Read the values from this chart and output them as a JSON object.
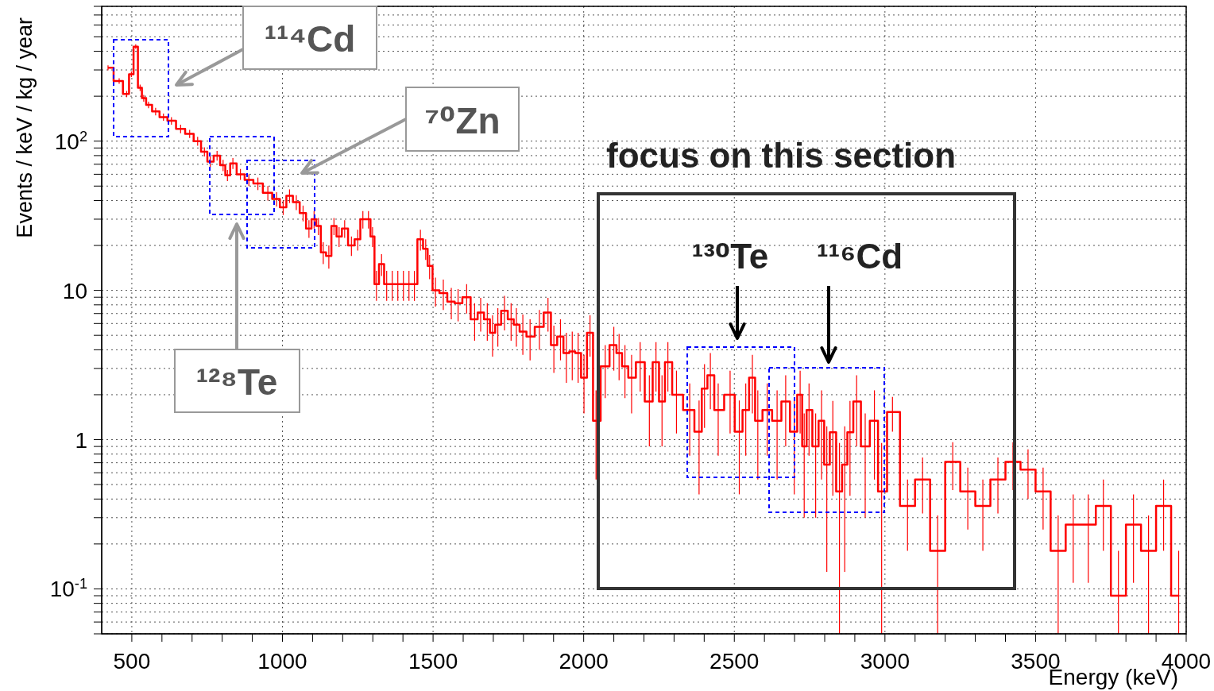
{
  "chart_data": {
    "type": "step",
    "color": "#ff0000",
    "xlabel": "Energy (keV)",
    "ylabel": "Events / keV / kg / year",
    "x": [
      421,
      458,
      483,
      498.5,
      513,
      527.5,
      539.5,
      555.5,
      579,
      605,
      631.5,
      662,
      692,
      718.5,
      741,
      760.5,
      783,
      803,
      817.5,
      835.5,
      860.5,
      888.5,
      918.5,
      951.5,
      980.5,
      1002.5,
      1023.5,
      1046,
      1068.5,
      1088,
      1105,
      1119.5,
      1135.5,
      1154,
      1171,
      1188,
      1206.5,
      1229,
      1250,
      1267,
      1285.5,
      1299,
      1312,
      1329,
      1346,
      1364.5,
      1383,
      1401.5,
      1420,
      1438,
      1458,
      1475.5,
      1488.5,
      1508,
      1534,
      1560.5,
      1583,
      1611.5,
      1638,
      1658,
      1680,
      1697.5,
      1715,
      1737,
      1759,
      1776.5,
      1798,
      1822,
      1853,
      1881.5,
      1901,
      1923,
      1942.5,
      1962,
      1981.5,
      2001,
      2021,
      2041,
      2071.5,
      2100,
      2117.5,
      2137,
      2159,
      2187.5,
      2218,
      2240,
      2260,
      2279.5,
      2308,
      2352,
      2383,
      2401,
      2420.5,
      2446.5,
      2486,
      2516.5,
      2538,
      2560,
      2578,
      2609,
      2642,
      2670.5,
      2699,
      2718.5,
      2732,
      2748,
      2770,
      2789.5,
      2807,
      2827,
      2849,
      2866.5,
      2884,
      2906,
      2934.5,
      2965,
      2989,
      3025,
      3075,
      3125,
      3175,
      3225,
      3275,
      3325,
      3375,
      3425,
      3475,
      3525,
      3575,
      3625,
      3675,
      3725,
      3775,
      3825,
      3875,
      3925,
      3975
    ],
    "values": [
      310,
      253,
      207,
      281,
      430,
      228,
      194,
      175,
      158,
      145,
      137,
      121,
      112,
      100,
      85,
      73,
      80,
      69,
      59,
      71,
      60,
      55,
      52,
      45,
      41,
      36,
      43,
      39,
      33,
      26,
      30,
      27,
      18,
      17,
      27,
      23,
      26,
      20,
      22,
      30,
      30,
      23,
      11,
      15,
      11,
      11,
      11,
      11,
      11,
      11,
      22,
      19,
      14.6,
      10,
      9.6,
      8.4,
      8.2,
      9.0,
      6.4,
      7.1,
      6.4,
      5.2,
      5.9,
      7.3,
      6.4,
      5.9,
      5.3,
      4.9,
      5.7,
      7.1,
      4.3,
      4.9,
      3.8,
      3.9,
      3.8,
      2.6,
      5.2,
      1.34,
      3.1,
      4.3,
      3.8,
      3.1,
      2.6,
      3.3,
      1.8,
      3.3,
      1.8,
      3.3,
      2.0,
      1.58,
      1.13,
      2.2,
      2.7,
      1.58,
      2.0,
      1.13,
      1.58,
      2.6,
      1.34,
      1.58,
      1.34,
      1.8,
      1.13,
      2.0,
      0.9,
      1.58,
      0.9,
      1.34,
      0.68,
      1.12,
      0.45,
      0.68,
      1.12,
      1.8,
      0.9,
      1.34,
      0.45,
      1.53,
      0.36,
      0.54,
      0.18,
      0.71,
      0.45,
      0.36,
      0.54,
      0.71,
      0.63,
      0.45,
      0.18,
      0.27,
      0.27,
      0.36,
      0.09,
      0.27,
      0.18,
      0.36,
      0.09
    ],
    "errors": [
      12,
      11,
      10,
      12,
      15,
      11,
      10,
      9,
      9,
      8,
      8,
      8,
      7,
      7,
      6,
      6,
      6,
      6,
      5,
      6,
      5,
      5,
      5,
      5,
      4.5,
      4,
      4.5,
      4.5,
      4,
      3.5,
      4,
      3.5,
      3,
      3,
      3.5,
      3.5,
      3.5,
      3,
      3.5,
      4,
      4,
      3.5,
      2.5,
      2.5,
      2.5,
      2.5,
      2.5,
      2.5,
      2.5,
      2.5,
      3.5,
      3,
      2.7,
      2.2,
      2.2,
      2,
      2,
      2,
      1.8,
      1.8,
      1.8,
      1.6,
      1.7,
      1.9,
      1.8,
      1.7,
      1.6,
      1.5,
      1.7,
      1.8,
      1.5,
      1.5,
      1.4,
      1.4,
      1.4,
      1.1,
      1.6,
      0.8,
      1.2,
      1.4,
      1.3,
      1.2,
      1.1,
      1.2,
      0.9,
      1.2,
      0.9,
      1.2,
      0.9,
      0.8,
      0.7,
      1.0,
      1.1,
      0.8,
      0.9,
      0.7,
      0.8,
      1.1,
      0.8,
      0.8,
      0.8,
      0.9,
      0.7,
      0.9,
      0.6,
      0.8,
      0.6,
      0.8,
      0.55,
      0.7,
      [
        0.05,
        0.95
      ],
      0.55,
      0.7,
      0.9,
      0.6,
      0.8,
      [
        0.05,
        0.95
      ],
      0.4,
      0.18,
      0.22,
      0.13,
      0.25,
      0.2,
      0.18,
      0.22,
      0.25,
      0.23,
      0.2,
      0.13,
      0.16,
      0.16,
      0.18,
      [
        0.05,
        0.18
      ],
      0.16,
      0.13,
      0.18,
      [
        0.05,
        0.18
      ]
    ],
    "xlim": [
      400,
      4000
    ],
    "ylim": [
      0.05,
      800
    ],
    "log": "y",
    "grid": true,
    "xticks": [
      500,
      {
        "value": 600,
        "label": null
      },
      {
        "value": 700,
        "label": null
      },
      {
        "value": 800,
        "label": null
      },
      {
        "value": 900,
        "label": null
      },
      1000,
      {
        "value": 1100,
        "label": null
      },
      {
        "value": 1200,
        "label": null
      },
      {
        "value": 1300,
        "label": null
      },
      {
        "value": 1400,
        "label": null
      },
      1500,
      {
        "value": 1600,
        "label": null
      },
      {
        "value": 1700,
        "label": null
      },
      {
        "value": 1800,
        "label": null
      },
      {
        "value": 1900,
        "label": null
      },
      2000,
      {
        "value": 2100,
        "label": null
      },
      {
        "value": 2200,
        "label": null
      },
      {
        "value": 2300,
        "label": null
      },
      {
        "value": 2400,
        "label": null
      },
      2500,
      {
        "value": 2600,
        "label": null
      },
      {
        "value": 2700,
        "label": null
      },
      {
        "value": 2800,
        "label": null
      },
      {
        "value": 2900,
        "label": null
      },
      3000,
      {
        "value": 3100,
        "label": null
      },
      {
        "value": 3200,
        "label": null
      },
      {
        "value": 3300,
        "label": null
      },
      {
        "value": 3400,
        "label": null
      },
      3500,
      {
        "value": 3600,
        "label": null
      },
      {
        "value": 3700,
        "label": null
      },
      {
        "value": 3800,
        "label": null
      },
      {
        "value": 3900,
        "label": null
      },
      4000
    ],
    "yticks": [
      {
        "value": 0.05,
        "label": null
      },
      {
        "value": 0.06,
        "label": null
      },
      {
        "value": 0.07,
        "label": null
      },
      {
        "value": 0.08,
        "label": null
      },
      {
        "value": 0.09,
        "label": null
      },
      {
        "value": 0.1,
        "label": "10$^{-1}$"
      },
      {
        "value": 0.2,
        "label": null
      },
      {
        "value": 0.3,
        "label": null
      },
      {
        "value": 0.4,
        "label": null
      },
      {
        "value": 0.5,
        "label": null
      },
      {
        "value": 0.6,
        "label": null
      },
      {
        "value": 0.7,
        "label": null
      },
      {
        "value": 0.8,
        "label": null
      },
      {
        "value": 0.9,
        "label": null
      },
      1,
      {
        "value": 2,
        "label": null
      },
      {
        "value": 3,
        "label": null
      },
      {
        "value": 4,
        "label": null
      },
      {
        "value": 5,
        "label": null
      },
      {
        "value": 6,
        "label": null
      },
      {
        "value": 7,
        "label": null
      },
      {
        "value": 8,
        "label": null
      },
      {
        "value": 9,
        "label": null
      },
      10,
      {
        "value": 20,
        "label": null
      },
      {
        "value": 30,
        "label": null
      },
      {
        "value": 40,
        "label": null
      },
      {
        "value": 50,
        "label": null
      },
      {
        "value": 60,
        "label": null
      },
      {
        "value": 70,
        "label": null
      },
      {
        "value": 80,
        "label": null
      },
      {
        "value": 90,
        "label": null
      },
      {
        "value": 100,
        "label": "10$^{2}$"
      },
      {
        "value": 200,
        "label": null
      },
      {
        "value": 300,
        "label": null
      },
      {
        "value": 400,
        "label": null
      },
      {
        "value": 500,
        "label": null
      },
      {
        "value": 600,
        "label": null
      },
      {
        "value": 700,
        "label": null
      },
      {
        "value": 800,
        "label": null
      }
    ],
    "annotations": [
      "¹¹⁴Cd",
      "⁷⁰Zn",
      "¹²⁸Te",
      "focus on this section",
      "¹³⁰Te",
      "¹¹⁶Cd"
    ]
  }
}
